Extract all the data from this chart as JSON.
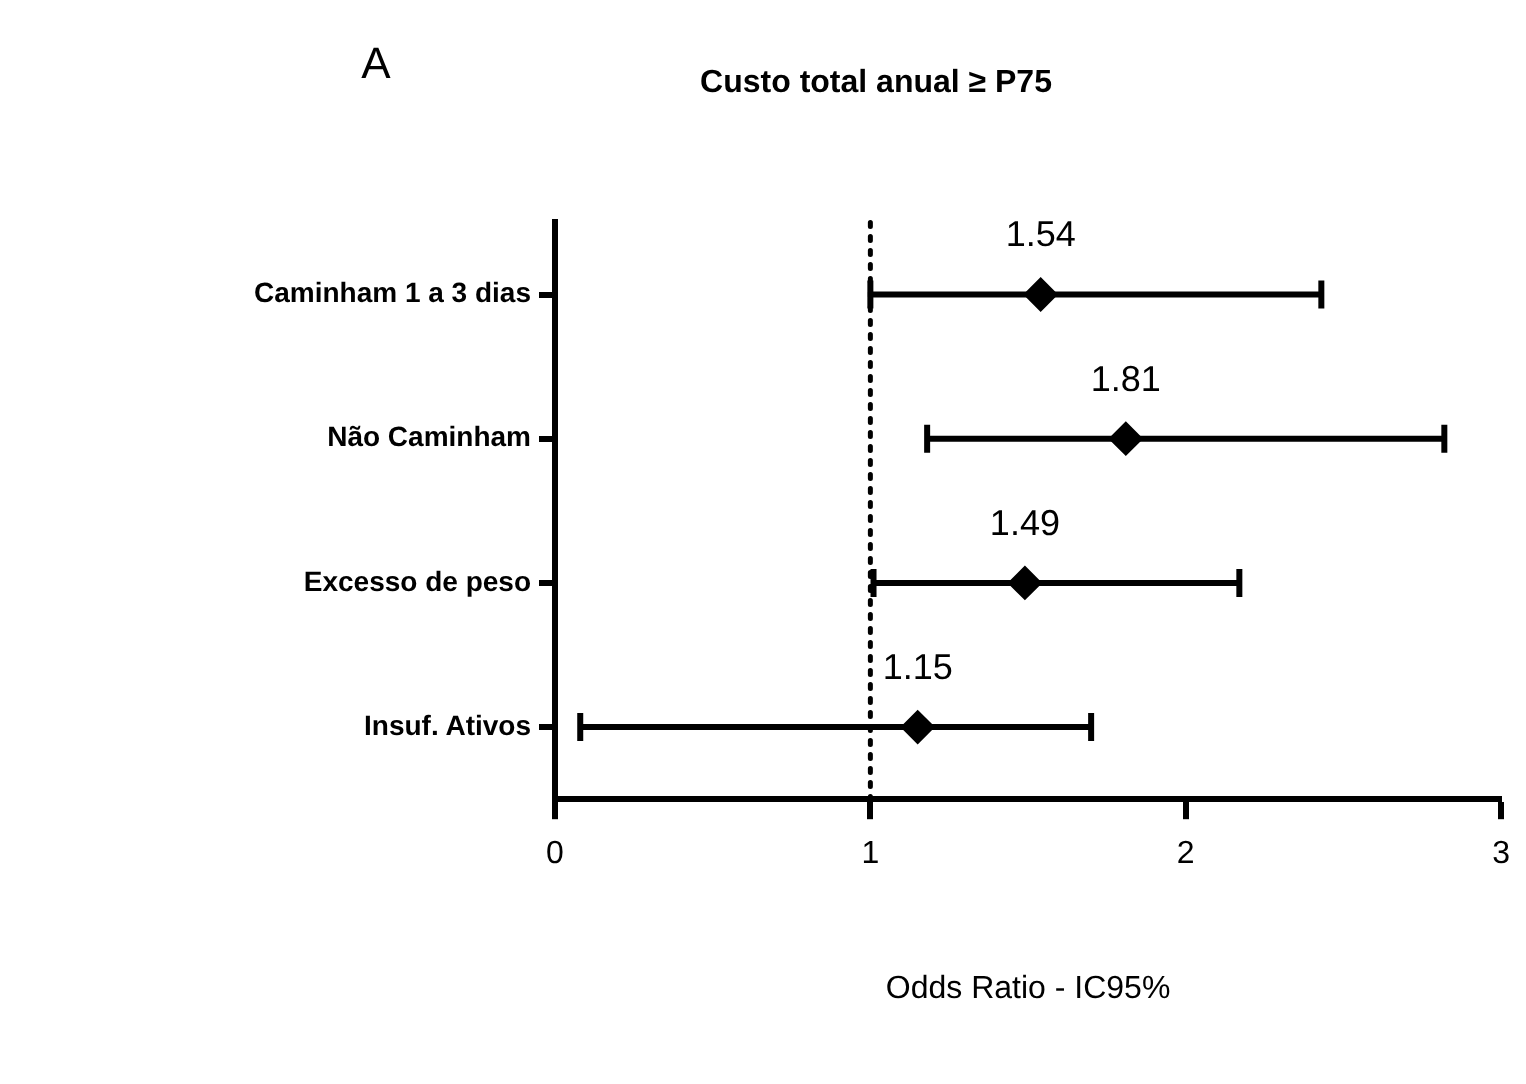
{
  "chart_data": {
    "type": "scatter",
    "title": "Custo total anual ≥ P75",
    "xlabel": "Odds Ratio - IC95%",
    "annotations": [
      "A"
    ],
    "categories": [
      "Caminham 1 a 3 dias",
      "Não Caminham",
      "Excesso de peso",
      "Insuf. Ativos"
    ],
    "orientation": "horizontal",
    "values": [
      1.54,
      1.81,
      1.49,
      1.15
    ],
    "errors": [
      [
        1.0,
        2.43
      ],
      [
        1.18,
        2.82
      ],
      [
        1.01,
        2.17
      ],
      [
        0.08,
        1.7
      ]
    ],
    "color": "#000000",
    "marker": "diamond",
    "data_labels": true,
    "xlim": [
      0,
      3
    ],
    "xticks": [
      0,
      1,
      2,
      3
    ],
    "ref_lines": [
      {
        "axis": "x",
        "value": 1,
        "line_style": "dotted",
        "color": "#000000"
      }
    ],
    "grid": false,
    "legend": false
  }
}
